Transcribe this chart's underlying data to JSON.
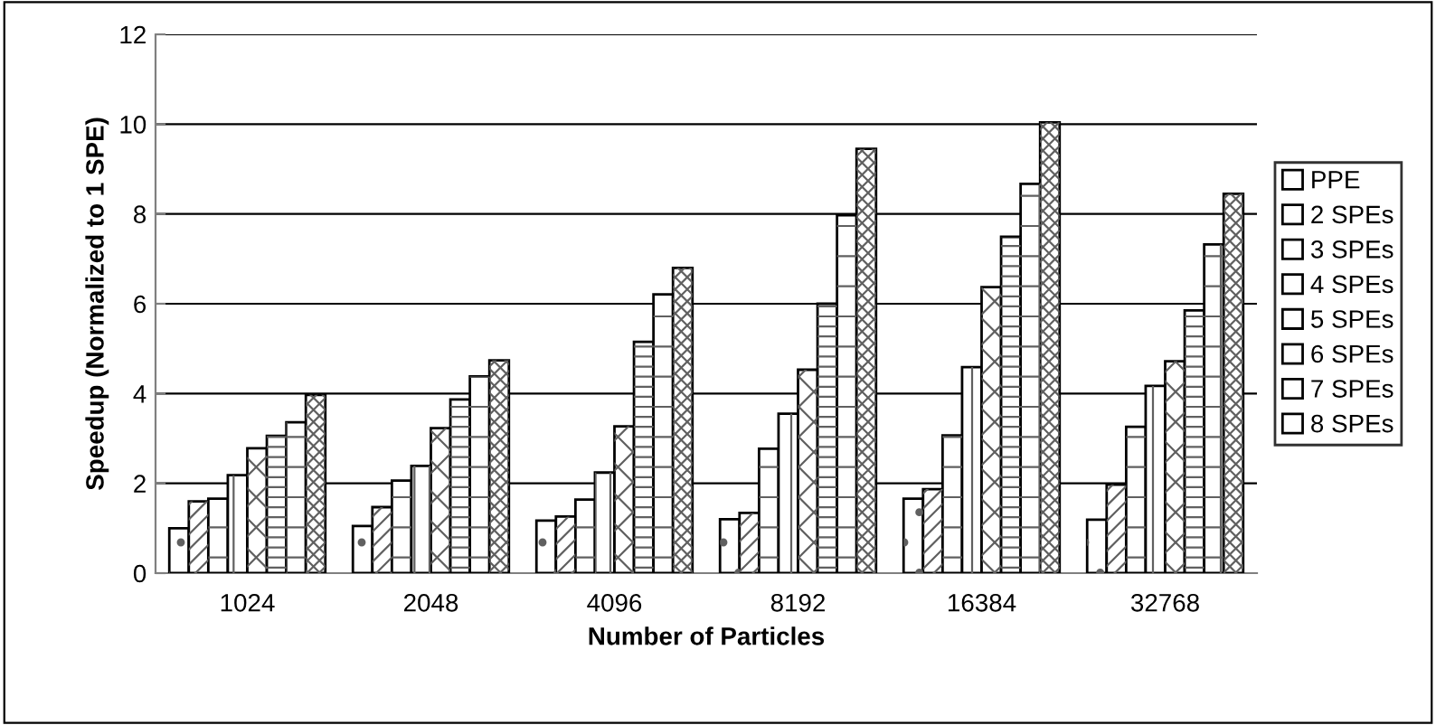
{
  "chart_data": {
    "type": "bar",
    "xlabel": "Number of Particles",
    "ylabel": "Speedup (Normalized to 1 SPE)",
    "categories": [
      "1024",
      "2048",
      "4096",
      "8192",
      "16384",
      "32768"
    ],
    "ylim": [
      0,
      12
    ],
    "yticks": [
      0,
      2,
      4,
      6,
      8,
      10,
      12
    ],
    "grid": "y",
    "legend": "right",
    "series": [
      {
        "name": "PPE",
        "color": "#ffffff",
        "values": [
          1.0,
          1.05,
          1.17,
          1.2,
          1.66,
          1.19
        ]
      },
      {
        "name": "2 SPEs",
        "color": "#ffffff",
        "values": [
          1.6,
          1.47,
          1.26,
          1.34,
          1.87,
          1.97
        ]
      },
      {
        "name": "3 SPEs",
        "color": "#ffffff",
        "values": [
          1.66,
          2.06,
          1.64,
          2.77,
          3.07,
          3.26
        ]
      },
      {
        "name": "4 SPEs",
        "color": "#ffffff",
        "values": [
          2.18,
          2.39,
          2.24,
          3.55,
          4.59,
          4.17
        ]
      },
      {
        "name": "5 SPEs",
        "color": "#ffffff",
        "values": [
          2.78,
          3.23,
          3.27,
          4.53,
          6.37,
          4.72
        ]
      },
      {
        "name": "6 SPEs",
        "color": "#ffffff",
        "values": [
          3.06,
          3.87,
          5.15,
          6.0,
          7.49,
          5.85
        ]
      },
      {
        "name": "7 SPEs",
        "color": "#ffffff",
        "values": [
          3.36,
          4.38,
          6.21,
          7.97,
          8.67,
          7.32
        ]
      },
      {
        "name": "8 SPEs",
        "color": "#ffffff",
        "values": [
          3.97,
          4.74,
          6.8,
          9.45,
          10.04,
          8.45
        ]
      }
    ]
  }
}
